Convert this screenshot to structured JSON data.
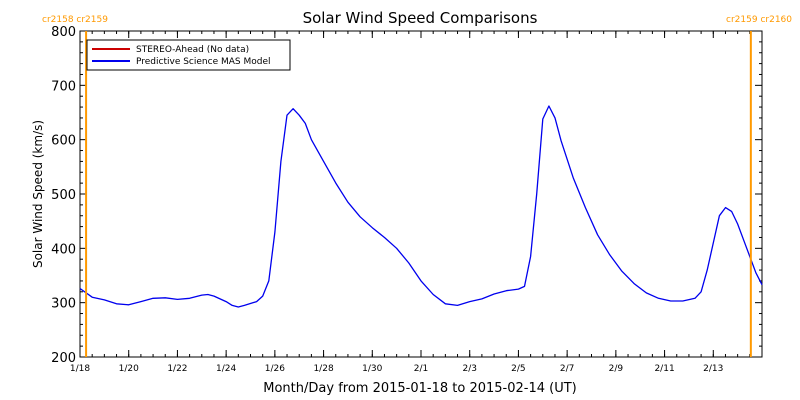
{
  "chart_data": {
    "type": "line",
    "title": "Solar Wind Speed Comparisons",
    "xlabel": "Month/Day from 2015-01-18 to 2015-02-14 (UT)",
    "ylabel": "Solar Wind Speed (km/s)",
    "xlim": [
      "2015-01-18",
      "2015-02-14"
    ],
    "ylim": [
      200,
      800
    ],
    "y_ticks": [
      200,
      300,
      400,
      500,
      600,
      700,
      800
    ],
    "x_ticks": [
      {
        "date": "2015-01-18",
        "label": "1/18"
      },
      {
        "date": "2015-01-20",
        "label": "1/20"
      },
      {
        "date": "2015-01-22",
        "label": "1/22"
      },
      {
        "date": "2015-01-24",
        "label": "1/24"
      },
      {
        "date": "2015-01-26",
        "label": "1/26"
      },
      {
        "date": "2015-01-28",
        "label": "1/28"
      },
      {
        "date": "2015-01-30",
        "label": "1/30"
      },
      {
        "date": "2015-02-01",
        "label": "2/1"
      },
      {
        "date": "2015-02-03",
        "label": "2/3"
      },
      {
        "date": "2015-02-05",
        "label": "2/5"
      },
      {
        "date": "2015-02-07",
        "label": "2/7"
      },
      {
        "date": "2015-02-09",
        "label": "2/9"
      },
      {
        "date": "2015-02-11",
        "label": "2/11"
      },
      {
        "date": "2015-02-13",
        "label": "2/13"
      }
    ],
    "legend": {
      "placement": "top-left",
      "entries": [
        {
          "name": "STEREO-Ahead (No data)",
          "color": "#cc0000"
        },
        {
          "name": "Predictive Science MAS Model",
          "color": "#0000ee"
        }
      ]
    },
    "carrington_markers": [
      {
        "date": "2015-01-18T06:00",
        "left_label": "cr2158",
        "right_label": "cr2159",
        "label_side": "left"
      },
      {
        "date": "2015-02-14T13:00",
        "left_label": "cr2159",
        "right_label": "cr2160",
        "label_side": "right"
      }
    ],
    "marker_color": "#ff9900",
    "series": [
      {
        "name": "Predictive Science MAS Model",
        "color": "#0000ee",
        "points": [
          [
            "2015-01-18T00:00",
            326
          ],
          [
            "2015-01-18T12:00",
            310
          ],
          [
            "2015-01-19T00:00",
            305
          ],
          [
            "2015-01-19T12:00",
            298
          ],
          [
            "2015-01-20T00:00",
            296
          ],
          [
            "2015-01-20T12:00",
            302
          ],
          [
            "2015-01-21T00:00",
            308
          ],
          [
            "2015-01-21T12:00",
            309
          ],
          [
            "2015-01-22T00:00",
            306
          ],
          [
            "2015-01-22T12:00",
            308
          ],
          [
            "2015-01-23T00:00",
            314
          ],
          [
            "2015-01-23T06:00",
            315
          ],
          [
            "2015-01-23T12:00",
            312
          ],
          [
            "2015-01-24T00:00",
            302
          ],
          [
            "2015-01-24T06:00",
            295
          ],
          [
            "2015-01-24T12:00",
            292
          ],
          [
            "2015-01-24T18:00",
            295
          ],
          [
            "2015-01-25T06:00",
            302
          ],
          [
            "2015-01-25T12:00",
            312
          ],
          [
            "2015-01-25T18:00",
            340
          ],
          [
            "2015-01-26T00:00",
            430
          ],
          [
            "2015-01-26T06:00",
            560
          ],
          [
            "2015-01-26T12:00",
            645
          ],
          [
            "2015-01-26T18:00",
            657
          ],
          [
            "2015-01-27T00:00",
            645
          ],
          [
            "2015-01-27T06:00",
            630
          ],
          [
            "2015-01-27T12:00",
            600
          ],
          [
            "2015-01-28T00:00",
            560
          ],
          [
            "2015-01-28T12:00",
            520
          ],
          [
            "2015-01-29T00:00",
            485
          ],
          [
            "2015-01-29T12:00",
            458
          ],
          [
            "2015-01-30T00:00",
            438
          ],
          [
            "2015-01-30T12:00",
            420
          ],
          [
            "2015-01-31T00:00",
            400
          ],
          [
            "2015-01-31T12:00",
            373
          ],
          [
            "2015-02-01T00:00",
            340
          ],
          [
            "2015-02-01T12:00",
            315
          ],
          [
            "2015-02-02T00:00",
            298
          ],
          [
            "2015-02-02T12:00",
            295
          ],
          [
            "2015-02-03T00:00",
            302
          ],
          [
            "2015-02-03T12:00",
            307
          ],
          [
            "2015-02-04T00:00",
            316
          ],
          [
            "2015-02-04T12:00",
            322
          ],
          [
            "2015-02-05T00:00",
            325
          ],
          [
            "2015-02-05T06:00",
            330
          ],
          [
            "2015-02-05T12:00",
            385
          ],
          [
            "2015-02-05T18:00",
            500
          ],
          [
            "2015-02-06T00:00",
            638
          ],
          [
            "2015-02-06T06:00",
            662
          ],
          [
            "2015-02-06T12:00",
            640
          ],
          [
            "2015-02-06T18:00",
            598
          ],
          [
            "2015-02-07T06:00",
            530
          ],
          [
            "2015-02-07T18:00",
            475
          ],
          [
            "2015-02-08T06:00",
            425
          ],
          [
            "2015-02-08T18:00",
            388
          ],
          [
            "2015-02-09T06:00",
            358
          ],
          [
            "2015-02-09T18:00",
            335
          ],
          [
            "2015-02-10T06:00",
            318
          ],
          [
            "2015-02-10T18:00",
            308
          ],
          [
            "2015-02-11T06:00",
            303
          ],
          [
            "2015-02-11T18:00",
            303
          ],
          [
            "2015-02-12T06:00",
            308
          ],
          [
            "2015-02-12T12:00",
            320
          ],
          [
            "2015-02-12T18:00",
            360
          ],
          [
            "2015-02-13T00:00",
            410
          ],
          [
            "2015-02-13T06:00",
            460
          ],
          [
            "2015-02-13T12:00",
            475
          ],
          [
            "2015-02-13T18:00",
            468
          ],
          [
            "2015-02-14T00:00",
            445
          ],
          [
            "2015-02-14T06:00",
            415
          ],
          [
            "2015-02-14T12:00",
            385
          ],
          [
            "2015-02-14T18:00",
            355
          ],
          [
            "2015-02-15T00:00",
            333
          ]
        ]
      }
    ]
  }
}
